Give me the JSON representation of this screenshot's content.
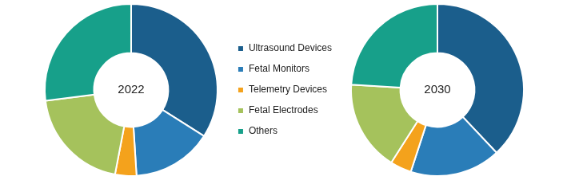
{
  "chart_data": [
    {
      "type": "doughnut",
      "title": "2022",
      "categories": [
        "Ultrasound Devices",
        "Fetal Monitors",
        "Telemetry Devices",
        "Fetal Electrodes",
        "Others"
      ],
      "values": [
        34,
        15,
        4,
        20,
        27
      ],
      "colors": [
        "#1b5e8c",
        "#2a7db8",
        "#f4a21c",
        "#a5c25c",
        "#17a08a"
      ],
      "legend": "right"
    },
    {
      "type": "doughnut",
      "title": "2030",
      "categories": [
        "Ultrasound Devices",
        "Fetal Monitors",
        "Telemetry Devices",
        "Fetal Electrodes",
        "Others"
      ],
      "values": [
        38,
        17,
        4,
        17,
        24
      ],
      "colors": [
        "#1b5e8c",
        "#2a7db8",
        "#f4a21c",
        "#a5c25c",
        "#17a08a"
      ]
    }
  ]
}
